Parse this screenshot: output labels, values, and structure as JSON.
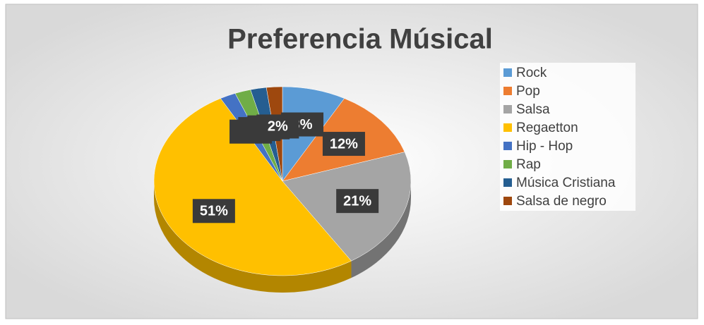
{
  "chart_data": {
    "type": "pie",
    "title": "Preferencia Músical",
    "categories": [
      "Rock",
      "Pop",
      "Salsa",
      "Regaetton",
      "Hip - Hop",
      "Rap",
      "Música Cristiana",
      "Salsa de negro"
    ],
    "values": [
      8,
      12,
      21,
      51,
      2,
      2,
      2,
      2
    ],
    "value_labels": [
      "8%",
      "12%",
      "21%",
      "51%",
      "2%",
      "2%",
      "2%",
      "2%"
    ],
    "colors": [
      "#5b9bd5",
      "#ed7d31",
      "#a5a5a5",
      "#ffc000",
      "#4472c4",
      "#70ad47",
      "#255e91",
      "#9e480e"
    ],
    "legend": "right"
  }
}
